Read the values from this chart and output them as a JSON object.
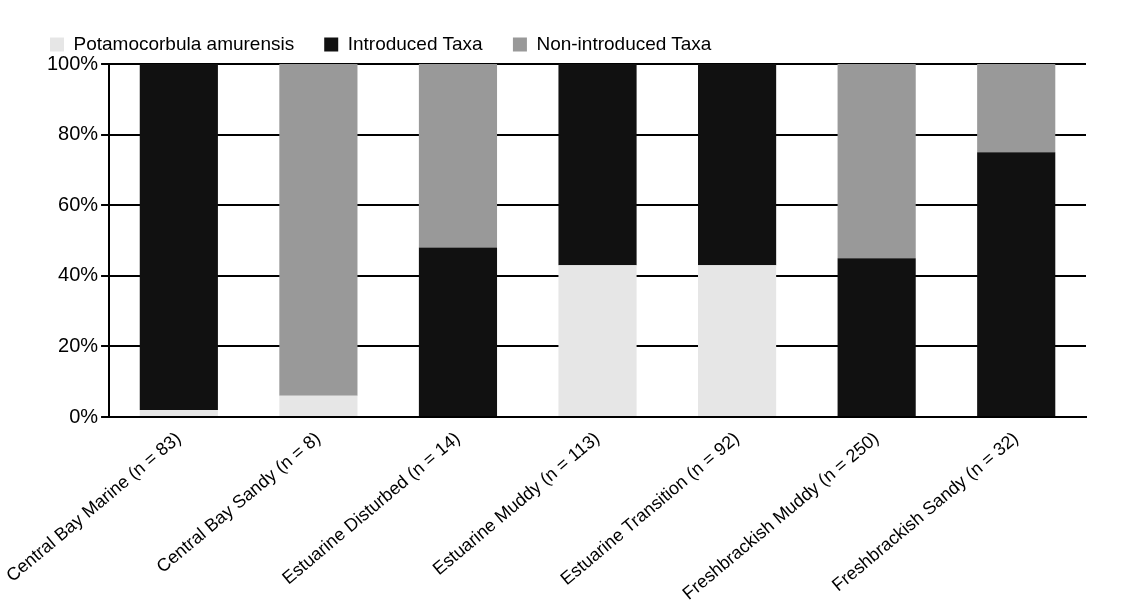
{
  "chart_data": {
    "type": "bar",
    "stacked": true,
    "categories": [
      "Central Bay Marine (n = 83)",
      "Central Bay Sandy (n = 8)",
      "Estuarine Disturbed (n = 14)",
      "Estuarine Muddy (n = 113)",
      "Estuarine Transition (n = 92)",
      "Freshbrackish Muddy (n = 250)",
      "Freshbrackish Sandy (n = 32)"
    ],
    "series": [
      {
        "name": "Potamocorbula amurensis",
        "color": "#e6e6e6",
        "values": [
          2,
          6,
          0,
          43,
          43,
          0,
          0
        ]
      },
      {
        "name": "Introduced Taxa",
        "color": "#111111",
        "values": [
          98,
          0,
          48,
          57,
          57,
          45,
          75
        ]
      },
      {
        "name": "Non-introduced Taxa",
        "color": "#999999",
        "values": [
          0,
          94,
          52,
          0,
          0,
          55,
          25
        ]
      }
    ],
    "ylim": [
      0,
      100
    ],
    "yticks": [
      {
        "value": 0,
        "label": "0%"
      },
      {
        "value": 20,
        "label": "20%"
      },
      {
        "value": 40,
        "label": "40%"
      },
      {
        "value": 60,
        "label": "60%"
      },
      {
        "value": 80,
        "label": "80%"
      },
      {
        "value": 100,
        "label": "100%"
      }
    ],
    "grid": "y",
    "legend": "top left"
  }
}
